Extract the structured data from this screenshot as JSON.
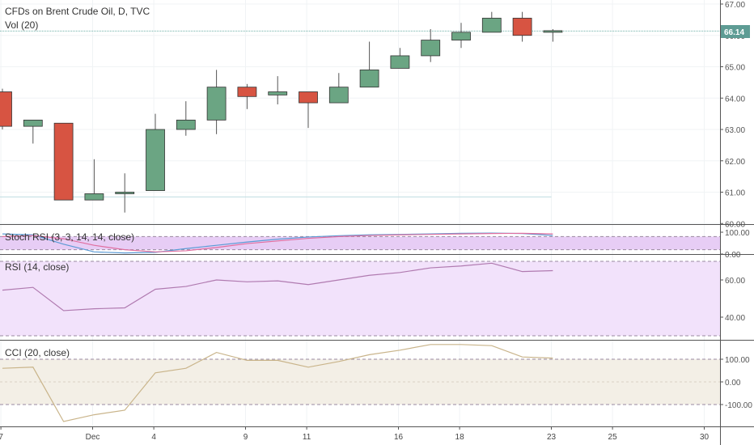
{
  "colors": {
    "up": "#6ba583",
    "down": "#d75442",
    "wick": "#555555",
    "grid": "#f0f3f5",
    "stoch_band": "#e7cdf5",
    "rsi_band": "#f2e2fb",
    "cci_band": "#f3efe6",
    "rsi_line": "#b07ab0",
    "stoch_k": "#5b9bd5",
    "stoch_d": "#e06fa0",
    "cci_line": "#c9b48a",
    "price_tag": "#5e9c94"
  },
  "chart_data": [
    {
      "type": "candlestick",
      "title": "CFDs on Brent Crude Oil, D, TVC",
      "subtitle": "Vol (20)",
      "ylim": [
        60.0,
        67.0
      ],
      "y_ticks": [
        "67.00",
        "66.00",
        "65.00",
        "64.00",
        "63.00",
        "62.00",
        "61.00",
        "60.00"
      ],
      "last_price": "66.14",
      "reference_lines": [
        66.14,
        60.85
      ],
      "candles": [
        {
          "o": 64.2,
          "h": 64.3,
          "l": 63.0,
          "c": 63.1
        },
        {
          "o": 63.1,
          "h": 63.3,
          "l": 62.55,
          "c": 63.3
        },
        {
          "o": 63.2,
          "h": 63.2,
          "l": 60.75,
          "c": 60.75
        },
        {
          "o": 60.75,
          "h": 62.05,
          "l": 60.75,
          "c": 60.95
        },
        {
          "o": 60.95,
          "h": 61.6,
          "l": 60.35,
          "c": 61.0
        },
        {
          "o": 61.05,
          "h": 63.5,
          "l": 61.05,
          "c": 63.0
        },
        {
          "o": 63.0,
          "h": 63.9,
          "l": 62.8,
          "c": 63.3
        },
        {
          "o": 63.3,
          "h": 64.9,
          "l": 62.85,
          "c": 64.35
        },
        {
          "o": 64.35,
          "h": 64.45,
          "l": 63.65,
          "c": 64.05
        },
        {
          "o": 64.1,
          "h": 64.7,
          "l": 63.8,
          "c": 64.2
        },
        {
          "o": 64.2,
          "h": 64.2,
          "l": 63.05,
          "c": 63.85
        },
        {
          "o": 63.85,
          "h": 64.8,
          "l": 63.85,
          "c": 64.35
        },
        {
          "o": 64.35,
          "h": 65.8,
          "l": 64.35,
          "c": 64.9
        },
        {
          "o": 64.95,
          "h": 65.6,
          "l": 64.95,
          "c": 65.35
        },
        {
          "o": 65.35,
          "h": 66.2,
          "l": 65.15,
          "c": 65.85
        },
        {
          "o": 65.85,
          "h": 66.4,
          "l": 65.6,
          "c": 66.1
        },
        {
          "o": 66.1,
          "h": 66.75,
          "l": 66.1,
          "c": 66.55
        },
        {
          "o": 66.55,
          "h": 66.75,
          "l": 65.8,
          "c": 66.0
        },
        {
          "o": 66.1,
          "h": 66.2,
          "l": 65.8,
          "c": 66.15
        }
      ]
    },
    {
      "type": "line",
      "title": "Stoch RSI (3, 3, 14, 14, close)",
      "ylim": [
        0,
        100
      ],
      "y_ticks": [
        "100.00",
        "0.00"
      ],
      "band": [
        20,
        80
      ],
      "series": [
        {
          "values": [
            92,
            88,
            45,
            10,
            5,
            8,
            25,
            40,
            55,
            68,
            78,
            84,
            88,
            90,
            92,
            95,
            96,
            94,
            85
          ]
        },
        {
          "values": [
            80,
            85,
            70,
            40,
            20,
            10,
            15,
            30,
            48,
            60,
            72,
            80,
            85,
            88,
            90,
            92,
            94,
            95,
            92
          ]
        }
      ]
    },
    {
      "type": "line",
      "title": "RSI (14, close)",
      "ylim": [
        30,
        72
      ],
      "y_ticks": [
        "60.00",
        "40.00"
      ],
      "band": [
        30,
        70
      ],
      "series": [
        {
          "values": [
            54.5,
            56,
            43.5,
            44.5,
            45,
            55,
            56.5,
            60,
            59,
            59.5,
            57.5,
            60,
            62.5,
            64,
            66.5,
            67.5,
            69,
            64.5,
            65
          ]
        }
      ]
    },
    {
      "type": "line",
      "title": "CCI (20, close)",
      "ylim": [
        -185,
        185
      ],
      "y_ticks": [
        "100.00",
        "0.00",
        "-100.00"
      ],
      "band": [
        -100,
        100
      ],
      "series": [
        {
          "values": [
            60,
            65,
            -175,
            -145,
            -125,
            40,
            60,
            130,
            95,
            95,
            65,
            90,
            120,
            140,
            165,
            165,
            160,
            110,
            105
          ]
        }
      ]
    }
  ],
  "x_ticks": [
    {
      "label": "7",
      "idx": -0.05
    },
    {
      "label": "Dec",
      "idx": 2.95
    },
    {
      "label": "4",
      "idx": 4.95
    },
    {
      "label": "9",
      "idx": 7.95
    },
    {
      "label": "11",
      "idx": 9.95
    },
    {
      "label": "16",
      "idx": 12.95
    },
    {
      "label": "18",
      "idx": 14.95
    },
    {
      "label": "23",
      "idx": 17.95
    },
    {
      "label": "25",
      "idx": 19.95
    },
    {
      "label": "30",
      "idx": 22.95
    }
  ]
}
